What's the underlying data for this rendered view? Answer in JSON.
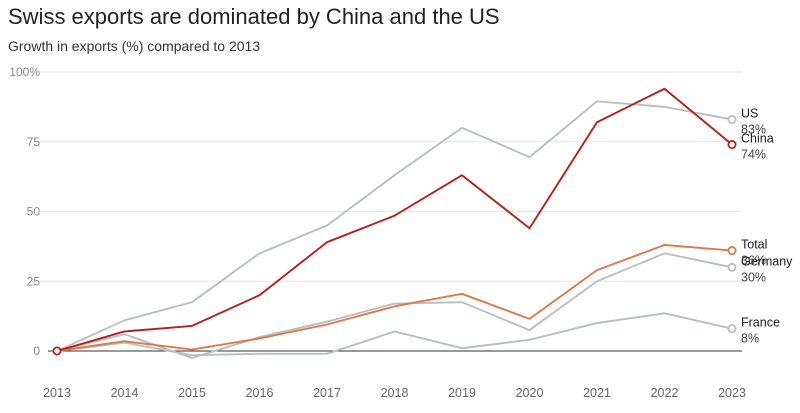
{
  "chart_data": {
    "type": "line",
    "title": "Swiss exports are dominated by China and the US",
    "subtitle": "Growth in exports (%) compared to 2013",
    "x": [
      2013,
      2014,
      2015,
      2016,
      2017,
      2018,
      2019,
      2020,
      2021,
      2022,
      2023
    ],
    "ylim": [
      0,
      100
    ],
    "yticks": [
      0,
      25,
      50,
      75,
      100
    ],
    "ytick_labels": [
      "0",
      "25",
      "50",
      "75",
      "100%"
    ],
    "grid": true,
    "series": [
      {
        "name": "US",
        "label_value": "83%",
        "color": "#b9bfbf",
        "values": [
          0,
          11,
          17.5,
          35,
          45,
          63,
          80,
          69.5,
          89.5,
          87.5,
          83
        ]
      },
      {
        "name": "China",
        "label_value": "74%",
        "color": "#b3211c",
        "values": [
          0,
          7,
          9,
          20,
          39,
          48.5,
          63,
          44,
          82,
          94,
          74
        ]
      },
      {
        "name": "Total",
        "label_value": "36%",
        "color": "#e0774b",
        "values": [
          0,
          3.5,
          0.5,
          4.5,
          9.5,
          16,
          20.5,
          11.5,
          29,
          38,
          36
        ]
      },
      {
        "name": "Germany",
        "label_value": "30%",
        "color": "#b9bfbf",
        "values": [
          0,
          6,
          -2.5,
          5,
          10.5,
          17,
          17.5,
          7.5,
          25,
          35,
          30
        ]
      },
      {
        "name": "France",
        "label_value": "8%",
        "color": "#b9bfbf",
        "values": [
          0,
          3,
          -1.5,
          -1,
          -1,
          7,
          1,
          4,
          10,
          13.5,
          8
        ]
      }
    ]
  }
}
